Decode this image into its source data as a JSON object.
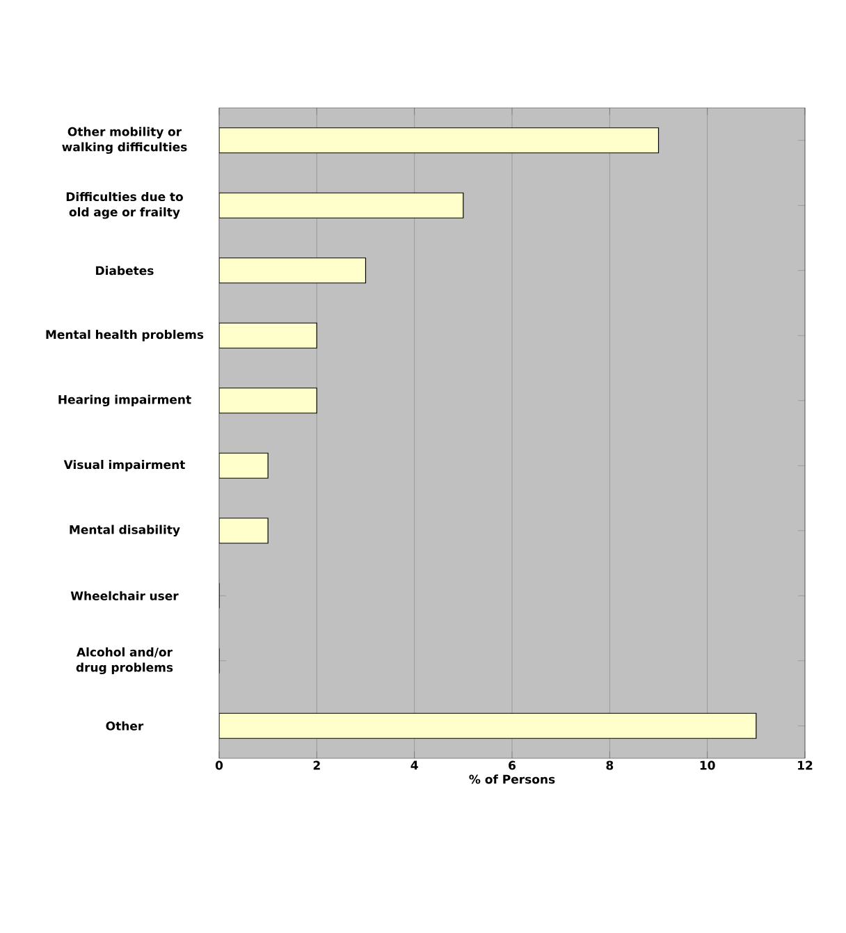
{
  "chart_data": {
    "type": "bar",
    "orientation": "horizontal",
    "categories": [
      "Other mobility or walking difficulties",
      "Difficulties due to old age or frailty",
      "Diabetes",
      "Mental health problems",
      "Hearing impairment",
      "Visual impairment",
      "Mental disability",
      "Wheelchair user",
      "Alcohol and/or drug problems",
      "Other"
    ],
    "values": [
      9,
      5,
      3,
      2,
      2,
      1,
      1,
      0,
      0,
      11
    ],
    "color": "#ffffcc",
    "xlim": [
      0,
      12
    ],
    "xticks": [
      0,
      2,
      4,
      6,
      8,
      10,
      12
    ],
    "xlabel": "% of Persons",
    "grid": "x"
  }
}
